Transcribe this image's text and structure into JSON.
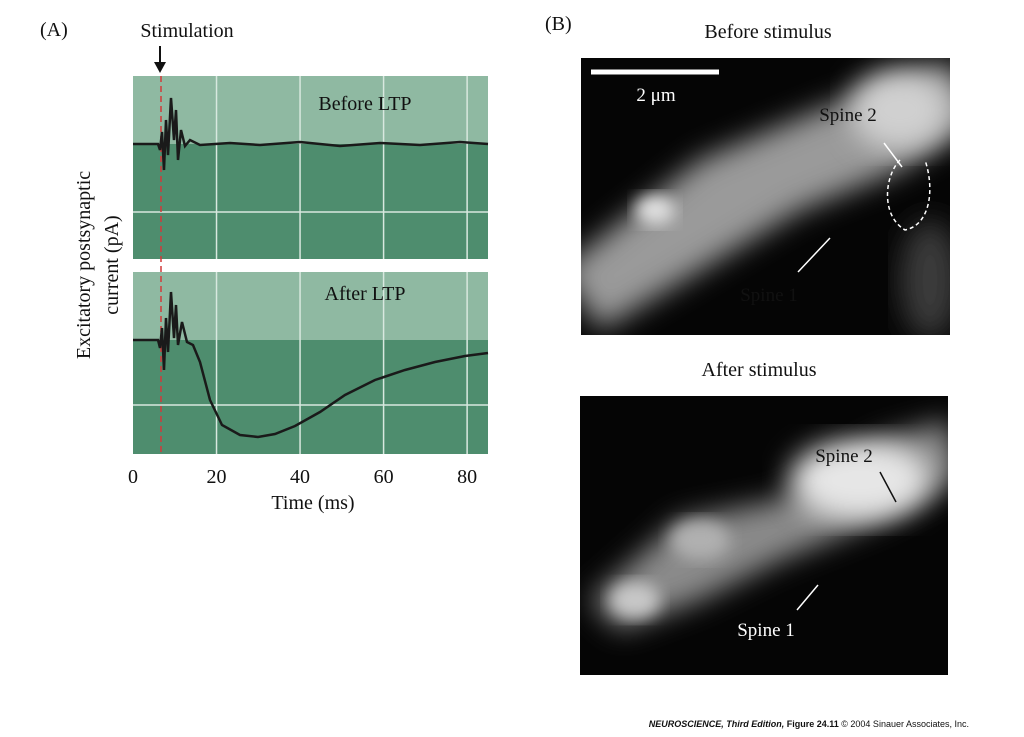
{
  "panel_a": {
    "label": "(A)",
    "stimulation": "Stimulation",
    "top_trace_label": "Before LTP",
    "bottom_trace_label": "After LTP",
    "y_axis_label": [
      "Excitatory postsynaptic",
      "current (pA)"
    ],
    "x_axis_label": "Time (ms)",
    "xlim": [
      0,
      85
    ],
    "xticks": [
      0,
      20,
      40,
      60,
      80
    ]
  },
  "panel_b": {
    "label": "(B)",
    "scale_bar": "2 μm",
    "top_image": {
      "title": "Before stimulus",
      "spine_2": "Spine 2",
      "spine_1": "Spine 1"
    },
    "bottom_image": {
      "title": "After stimulus",
      "spine_2": "Spine 2",
      "spine_1": "Spine 1"
    }
  },
  "footer": {
    "book": "NEUROSCIENCE, Third Edition,",
    "figure": "Figure 24.11",
    "copyright": "© 2004 Sinauer Associates, Inc."
  }
}
